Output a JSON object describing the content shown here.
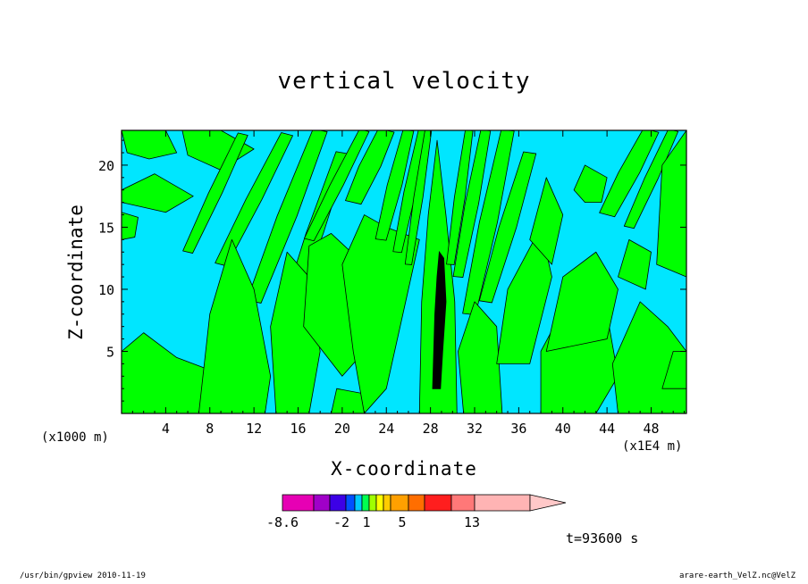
{
  "chart_data": {
    "type": "heatmap",
    "title": "vertical velocity",
    "xlabel": "X-coordinate",
    "ylabel": "Z-coordinate",
    "x_unit_note": "(x1000 m)",
    "x_scale_note": "(x1E4 m)",
    "x_ticks": [
      "4",
      "8",
      "12",
      "16",
      "20",
      "24",
      "28",
      "32",
      "36",
      "40",
      "44",
      "48"
    ],
    "y_ticks": [
      "5",
      "10",
      "15",
      "20"
    ],
    "xlim": [
      0,
      51.2
    ],
    "ylim": [
      0,
      22.8
    ],
    "colorbar": {
      "tick_labels": [
        "-8.6",
        "-2",
        "1",
        "5",
        "13"
      ],
      "colors": [
        "#e600b4",
        "#a000c8",
        "#3c00e6",
        "#0050ff",
        "#00c8ff",
        "#00ff50",
        "#a0ff00",
        "#ffff00",
        "#ffcc00",
        "#ffa000",
        "#ff6e00",
        "#ff1e1e",
        "#ff7878",
        "#ffb4b4",
        "#ffc8c8"
      ]
    },
    "field_colors": {
      "background": "#00e6ff",
      "positive": "#00ff00",
      "core": "#000000"
    },
    "time_label": "t=93600 s"
  },
  "footer": {
    "left": "/usr/bin/gpview  2010-11-19",
    "right": "arare-earth_VelZ.nc@VelZ"
  }
}
